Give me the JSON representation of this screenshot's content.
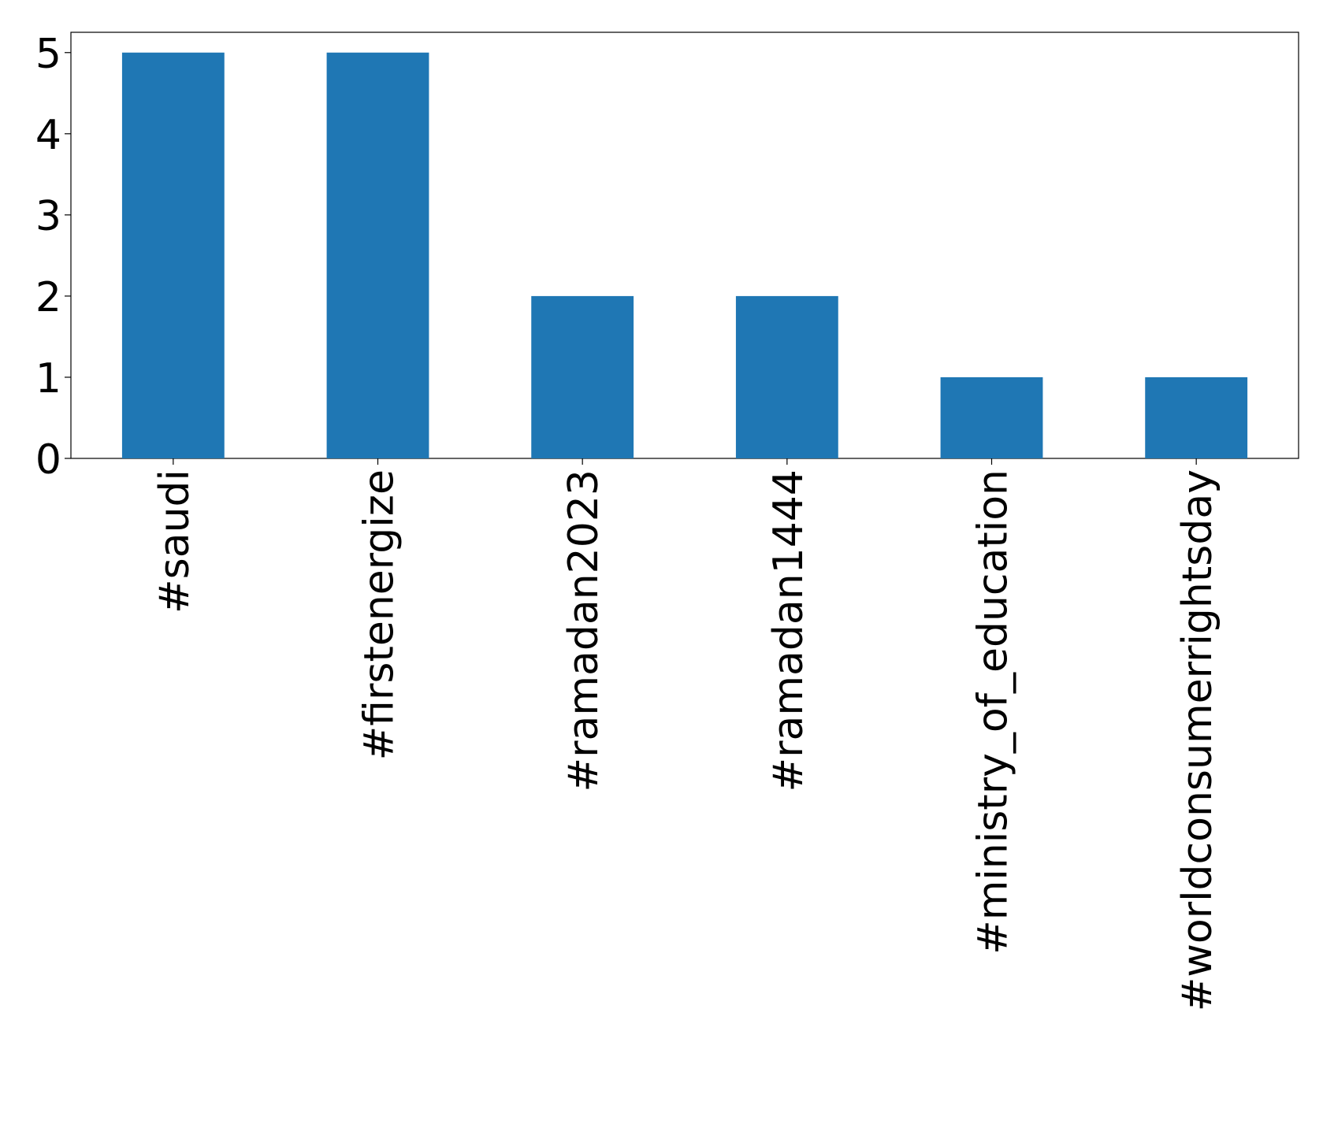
{
  "chart_data": {
    "type": "bar",
    "categories": [
      "#saudi",
      "#firstenergize",
      "#ramadan2023",
      "#ramadan1444",
      "#ministry_of_education",
      "#worldconsumerrightsday"
    ],
    "values": [
      5,
      5,
      2,
      2,
      1,
      1
    ],
    "color": "#1f77b4",
    "ylim": [
      0,
      5.25
    ],
    "yticks": [
      0,
      1,
      2,
      3,
      4,
      5
    ],
    "grid": false
  }
}
